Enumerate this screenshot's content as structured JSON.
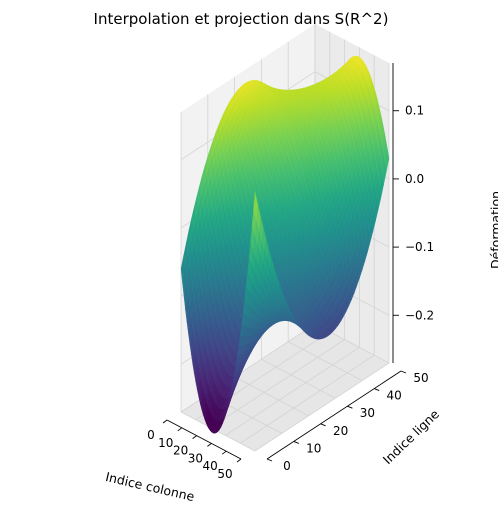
{
  "chart_data": {
    "type": "surface",
    "title": "Interpolation et projection dans S(R^2)",
    "xlabel": "Indice colonne",
    "ylabel": "Indice ligne",
    "zlabel": "Déformation",
    "x_ticks": [
      "0",
      "10",
      "20",
      "30",
      "40",
      "50"
    ],
    "y_ticks": [
      "0",
      "10",
      "20",
      "30",
      "40",
      "50"
    ],
    "z_ticks": [
      "−0.2",
      "−0.1",
      "0.0",
      "0.1"
    ],
    "xlim": [
      0,
      50
    ],
    "ylim": [
      0,
      50
    ],
    "zlim": [
      -0.27,
      0.17
    ],
    "colormap": "viridis",
    "grid_size": 51,
    "z_samples": [
      {
        "x": 0,
        "y": 0,
        "z": -0.06
      },
      {
        "x": 25,
        "y": 0,
        "z": -0.27
      },
      {
        "x": 50,
        "y": 0,
        "z": 0.11
      },
      {
        "x": 0,
        "y": 25,
        "z": 0.15
      },
      {
        "x": 25,
        "y": 25,
        "z": 0.01
      },
      {
        "x": 50,
        "y": 25,
        "z": -0.17
      },
      {
        "x": 0,
        "y": 50,
        "z": -0.1
      },
      {
        "x": 25,
        "y": 50,
        "z": 0.15
      },
      {
        "x": 50,
        "y": 50,
        "z": 0.03
      }
    ],
    "grid": true,
    "colors": {
      "pane": "#f2f2f2",
      "grid": "#d3d3d3",
      "axis": "#000000"
    }
  }
}
